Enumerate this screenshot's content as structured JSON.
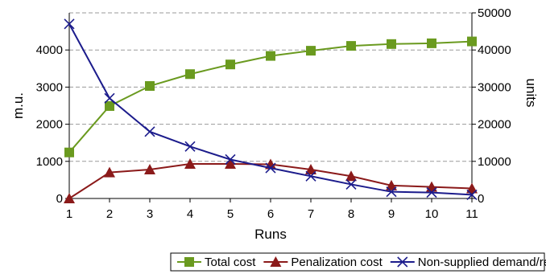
{
  "chart_data": {
    "type": "line",
    "title": "",
    "x": [
      1,
      2,
      3,
      4,
      5,
      6,
      7,
      8,
      9,
      10,
      11
    ],
    "xlabel": "Runs",
    "ylabel_left": "m.u.",
    "ylabel_right": "units",
    "ylim_left": [
      0,
      5000
    ],
    "yticks_left": [
      0,
      1000,
      2000,
      3000,
      4000
    ],
    "ylim_right": [
      0,
      50000
    ],
    "yticks_right": [
      0,
      10000,
      20000,
      30000,
      40000,
      50000
    ],
    "grid": "horizontal dashed",
    "legend_position": "bottom",
    "series": [
      {
        "name": "Total cost",
        "axis": "left",
        "color": "#6a9a1f",
        "marker": "square",
        "values": [
          1240,
          2490,
          3030,
          3350,
          3610,
          3840,
          3980,
          4110,
          4160,
          4180,
          4230
        ]
      },
      {
        "name": "Penalization cost",
        "axis": "left",
        "color": "#8b1a1a",
        "marker": "triangle",
        "values": [
          0,
          700,
          780,
          930,
          930,
          920,
          780,
          600,
          350,
          310,
          270
        ]
      },
      {
        "name": "Non-supplied demand/return",
        "axis": "right",
        "color": "#1c1c8c",
        "marker": "x",
        "values": [
          47000,
          27000,
          18000,
          14000,
          10500,
          8200,
          6000,
          3800,
          1800,
          1600,
          1000
        ]
      }
    ]
  }
}
